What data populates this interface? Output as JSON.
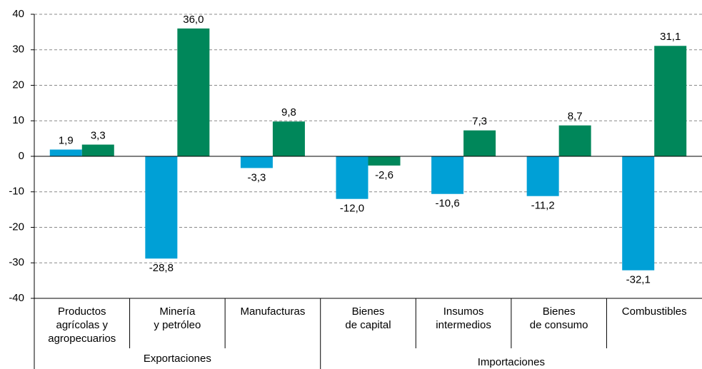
{
  "chart_data": {
    "type": "bar",
    "categories": [
      [
        "Productos",
        "agrícolas y",
        "agropecuarios"
      ],
      [
        "Minería",
        "y petróleo"
      ],
      [
        "Manufacturas"
      ],
      [
        "Bienes",
        "de capital"
      ],
      [
        "Insumos",
        "intermedios"
      ],
      [
        "Bienes",
        "de consumo"
      ],
      [
        "Combustibles"
      ]
    ],
    "groups": [
      {
        "label": "Exportaciones",
        "span": 3
      },
      {
        "label": "Importaciones",
        "span": 4
      }
    ],
    "series": [
      {
        "color": "#00a0d6",
        "values": [
          1.9,
          -28.8,
          -3.3,
          -12.0,
          -10.6,
          -11.2,
          -32.1
        ],
        "value_labels": [
          "1,9",
          "-28,8",
          "-3,3",
          "-12,0",
          "-10,6",
          "-11,2",
          "-32,1"
        ]
      },
      {
        "color": "#00875a",
        "values": [
          3.3,
          36.0,
          9.8,
          -2.6,
          7.3,
          8.7,
          31.1
        ],
        "value_labels": [
          "3,3",
          "36,0",
          "9,8",
          "-2,6",
          "7,3",
          "8,7",
          "31,1"
        ]
      }
    ],
    "ylim": [
      -40,
      40
    ],
    "yticks": [
      -40,
      -30,
      -20,
      -10,
      0,
      10,
      20,
      30,
      40
    ],
    "grid": true
  }
}
